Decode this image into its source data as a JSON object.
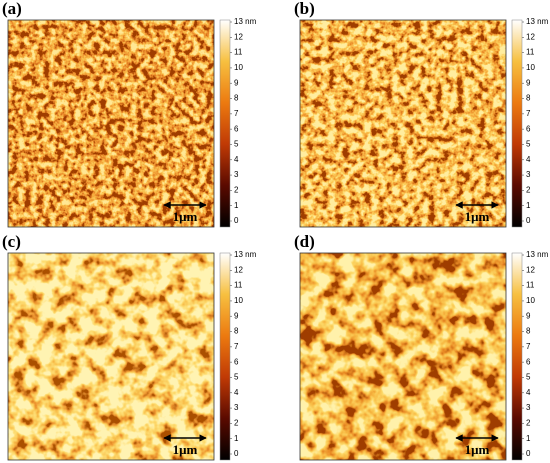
{
  "panels": [
    {
      "label": "(a)",
      "scale_bar": "1μm"
    },
    {
      "label": "(b)",
      "scale_bar": "1μm"
    },
    {
      "label": "(c)",
      "scale_bar": "1μm"
    },
    {
      "label": "(d)",
      "scale_bar": "1μm"
    }
  ],
  "colorbar": {
    "lim": [
      0,
      13
    ],
    "ticks": [
      0,
      1,
      2,
      3,
      4,
      5,
      6,
      7,
      8,
      9,
      10,
      11,
      12,
      {
        "value": 13,
        "label": "13 nm"
      }
    ]
  }
}
